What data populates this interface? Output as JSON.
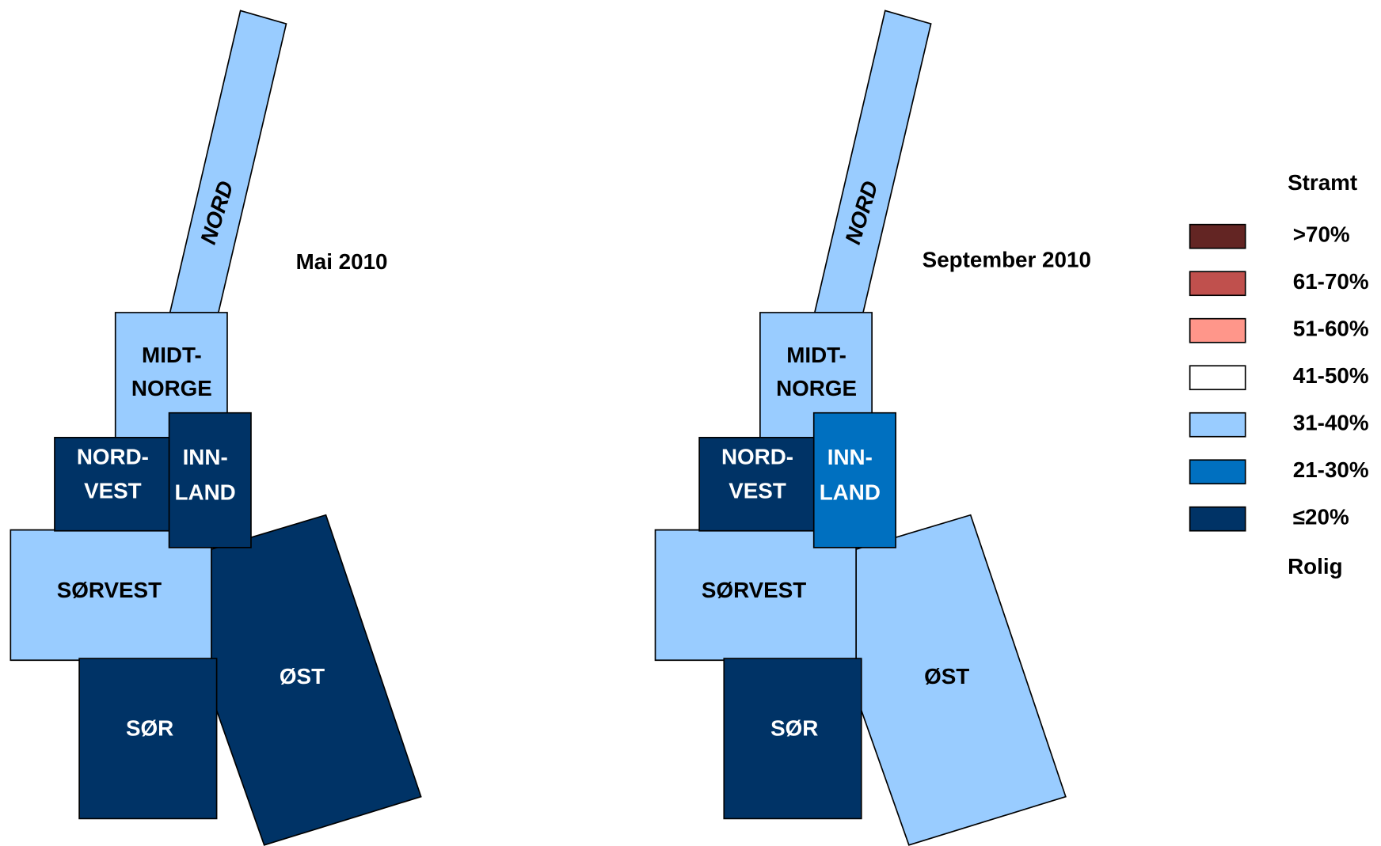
{
  "maps": [
    {
      "title": "Mai 2010",
      "regions": [
        {
          "label": [
            "NORD"
          ],
          "color": "#99ccff"
        },
        {
          "label": [
            "MIDT-",
            "NORGE"
          ],
          "color": "#99ccff"
        },
        {
          "label": [
            "ØST"
          ],
          "color": "#003366"
        },
        {
          "label": [
            "SØRVEST"
          ],
          "color": "#99ccff"
        },
        {
          "label": [
            "NORD-",
            "VEST"
          ],
          "color": "#003366"
        },
        {
          "label": [
            "INN-",
            "LAND"
          ],
          "color": "#003366"
        },
        {
          "label": [
            "SØR"
          ],
          "color": "#003366"
        }
      ]
    },
    {
      "title": "September 2010",
      "regions": [
        {
          "label": [
            "NORD"
          ],
          "color": "#99ccff"
        },
        {
          "label": [
            "MIDT-",
            "NORGE"
          ],
          "color": "#99ccff"
        },
        {
          "label": [
            "ØST"
          ],
          "color": "#99ccff"
        },
        {
          "label": [
            "SØRVEST"
          ],
          "color": "#99ccff"
        },
        {
          "label": [
            "NORD-",
            "VEST"
          ],
          "color": "#003366"
        },
        {
          "label": [
            "INN-",
            "LAND"
          ],
          "color": "#0070c0"
        },
        {
          "label": [
            "SØR"
          ],
          "color": "#003366"
        }
      ]
    }
  ],
  "legend": {
    "top": "Stramt",
    "items": [
      {
        "label": ">70%",
        "color": "#632523"
      },
      {
        "label": "61-70%",
        "color": "#c0504d"
      },
      {
        "label": "51-60%",
        "color": "#ff968a"
      },
      {
        "label": "41-50%",
        "color": "#ffffff"
      },
      {
        "label": "31-40%",
        "color": "#99ccff"
      },
      {
        "label": "21-30%",
        "color": "#0070c0"
      },
      {
        "label": "≤20%",
        "color": "#003366"
      }
    ],
    "bottom": "Rolig"
  }
}
